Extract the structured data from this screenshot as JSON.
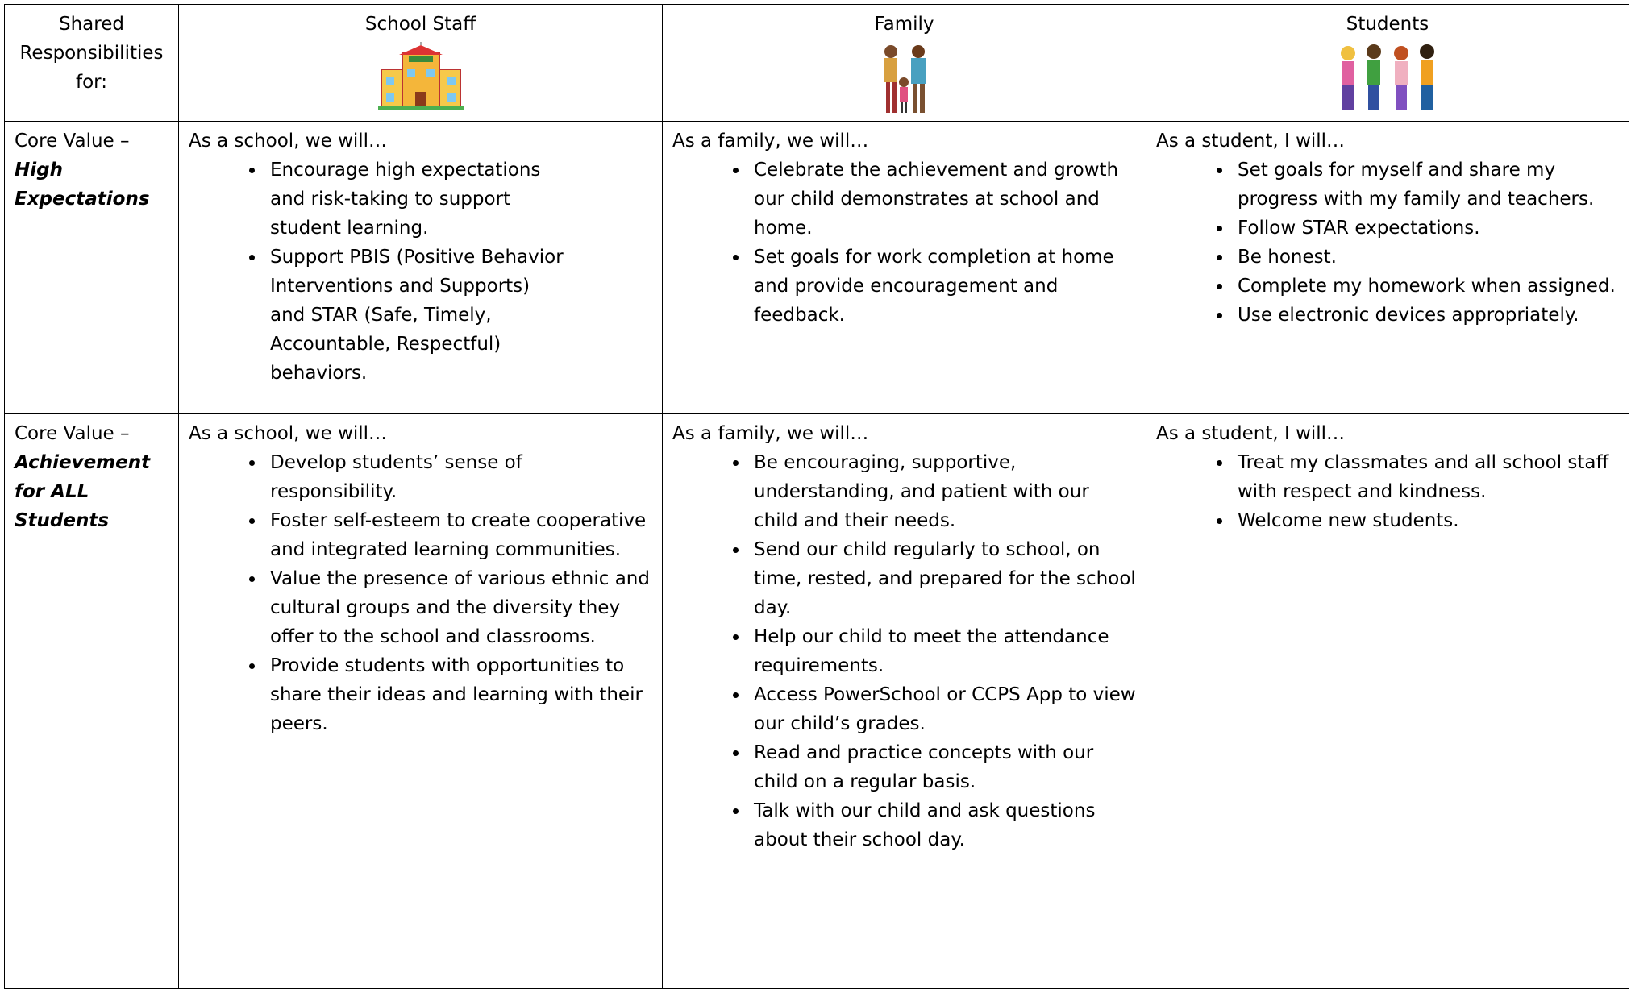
{
  "table": {
    "header": [
      "Shared Responsibilities for:",
      "School Staff",
      "Family",
      "Students"
    ],
    "rows": [
      {
        "prefix": "Core Value –",
        "label": "High Expectations",
        "cells": [
          {
            "intro": "As a school, we will…",
            "items": [
              "Encourage high expectations and risk-taking to support student learning.",
              "Support PBIS (Positive Behavior Interventions and Supports) and STAR (Safe, Timely, Accountable, Respectful) behaviors."
            ]
          },
          {
            "intro": "As a family, we will…",
            "items": [
              "Celebrate the achievement and growth our child demonstrates at school and home.",
              "Set goals for work completion at home and provide encouragement and feedback."
            ]
          },
          {
            "intro": "As a student, I will…",
            "items": [
              "Set goals for myself and share my progress with my family and teachers.",
              "Follow STAR expectations.",
              "Be honest.",
              "Complete my homework when assigned.",
              "Use electronic devices appropriately."
            ]
          }
        ]
      },
      {
        "prefix": "Core Value –",
        "label": "Achievement for ALL Students",
        "cells": [
          {
            "intro": "As a school, we will…",
            "items": [
              "Develop students’ sense of responsibility.",
              "Foster self-esteem to create cooperative and integrated learning communities.",
              "Value the presence of various ethnic and cultural groups and the diversity they offer to the school and classrooms.",
              "Provide students with opportunities to share their ideas and learning with their peers."
            ]
          },
          {
            "intro": "As a family, we will…",
            "items": [
              "Be encouraging, supportive, understanding, and patient with our child and their needs.",
              "Send our child regularly to school, on time, rested, and prepared for the school day.",
              "Help our child to meet the attendance requirements.",
              "Access PowerSchool or CCPS App to view our child’s grades.",
              "Read and practice concepts with our child on a regular basis.",
              "Talk with our child and ask questions about their school day."
            ]
          },
          {
            "intro": "As a student, I will…",
            "items": [
              "Treat my classmates and all school staff with respect and kindness.",
              "Welcome new students."
            ]
          }
        ]
      }
    ]
  }
}
